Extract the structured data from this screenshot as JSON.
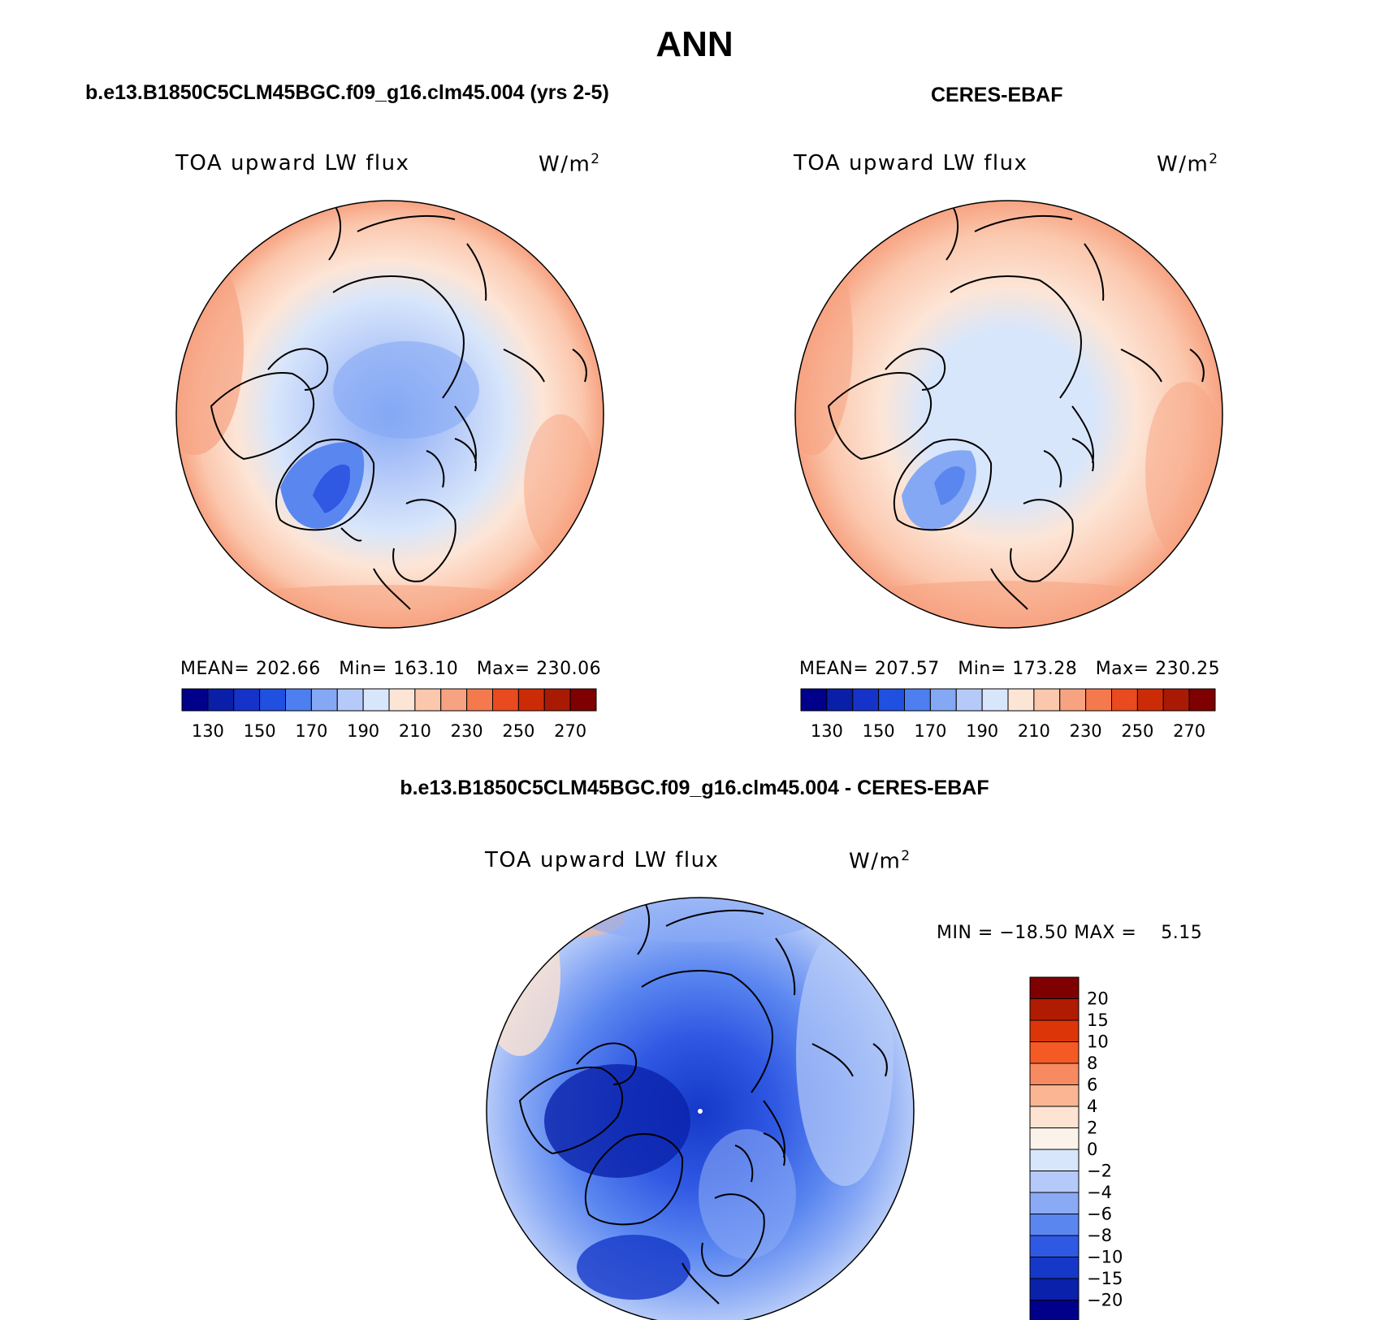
{
  "page_title": "ANN",
  "panels": [
    {
      "id": "model",
      "header": "b.e13.B1850C5CLM45BGC.f09_g16.clm45.004 (yrs 2-5)",
      "variable": "TOA upward LW flux",
      "units": "W/m",
      "units_sup": "2",
      "stats": "MEAN= 202.66   Min= 163.10   Max= 230.06"
    },
    {
      "id": "obs",
      "header": "CERES-EBAF",
      "variable": "TOA upward LW flux",
      "units": "W/m",
      "units_sup": "2",
      "stats": "MEAN= 207.57   Min= 173.28   Max= 230.25"
    }
  ],
  "abs_colorbar": {
    "colors": [
      "#00008b",
      "#0a1fa8",
      "#1533c8",
      "#2050e0",
      "#4d7ff0",
      "#85a8f5",
      "#b5caf8",
      "#d8e6fb",
      "#fde5d6",
      "#fbc7ad",
      "#f7a382",
      "#f47a4e",
      "#ea4a1f",
      "#cc2b08",
      "#a81a04",
      "#7e0000"
    ],
    "labels": [
      "130",
      "150",
      "170",
      "190",
      "210",
      "230",
      "250",
      "270"
    ]
  },
  "diff_panel": {
    "header": "b.e13.B1850C5CLM45BGC.f09_g16.clm45.004 - CERES-EBAF",
    "variable": "TOA upward LW flux",
    "units": "W/m",
    "units_sup": "2",
    "minmax": "MIN = −18.50 MAX =    5.15"
  },
  "diff_colorbar": {
    "colors": [
      "#7e0000",
      "#b01c02",
      "#dc3608",
      "#f45a24",
      "#f78a60",
      "#fbb592",
      "#fde3d2",
      "#fbf3ea",
      "#d8e6fb",
      "#b5caf8",
      "#8aaaf5",
      "#5a86f0",
      "#2f58e3",
      "#1538c8",
      "#0a22aa",
      "#00008b"
    ],
    "labels": [
      "20",
      "15",
      "10",
      "8",
      "6",
      "4",
      "2",
      "0",
      "−2",
      "−4",
      "−6",
      "−8",
      "−10",
      "−15",
      "−20"
    ]
  }
}
